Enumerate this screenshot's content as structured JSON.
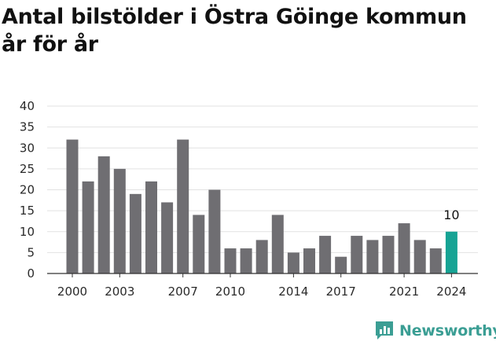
{
  "title_lines": [
    "Antal bilstölder i Östra Göinge kommun",
    "år för år"
  ],
  "chart_data": {
    "type": "bar",
    "x": [
      2000,
      2001,
      2002,
      2003,
      2004,
      2005,
      2006,
      2007,
      2008,
      2009,
      2010,
      2011,
      2012,
      2013,
      2014,
      2015,
      2016,
      2017,
      2018,
      2019,
      2020,
      2021,
      2022,
      2023,
      2024
    ],
    "values": [
      32,
      22,
      28,
      25,
      19,
      22,
      17,
      32,
      14,
      20,
      6,
      6,
      8,
      14,
      5,
      6,
      9,
      4,
      9,
      8,
      9,
      12,
      8,
      6,
      10
    ],
    "ylim": [
      0,
      40
    ],
    "yticks": [
      0,
      5,
      10,
      15,
      20,
      25,
      30,
      35,
      40
    ],
    "xticks": [
      2000,
      2003,
      2007,
      2010,
      2014,
      2017,
      2021,
      2024
    ],
    "highlight": {
      "x": 2024,
      "label": "10"
    },
    "grid": true,
    "colors": {
      "bar": "#6f6e72",
      "highlight": "#16a394",
      "grid": "#e2e2e2",
      "axis": "#333333"
    }
  },
  "logo": {
    "text": "Newsworthy",
    "icon": "bar-chart-speech-bubble-icon",
    "color": "#3b9e94"
  }
}
